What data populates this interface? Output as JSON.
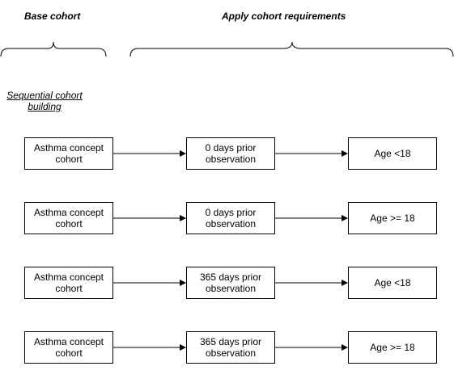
{
  "headers": {
    "base": "Base cohort",
    "apply": "Apply cohort requirements"
  },
  "note": "Sequential cohort building",
  "rows": [
    {
      "base": "Asthma concept cohort",
      "observation": "0 days prior observation",
      "age": "Age <18"
    },
    {
      "base": "Asthma concept cohort",
      "observation": "0 days prior observation",
      "age": "Age >= 18"
    },
    {
      "base": "Asthma concept cohort",
      "observation": "365 days prior observation",
      "age": "Age <18"
    },
    {
      "base": "Asthma concept cohort",
      "observation": "365 days prior observation",
      "age": "Age >= 18"
    }
  ]
}
